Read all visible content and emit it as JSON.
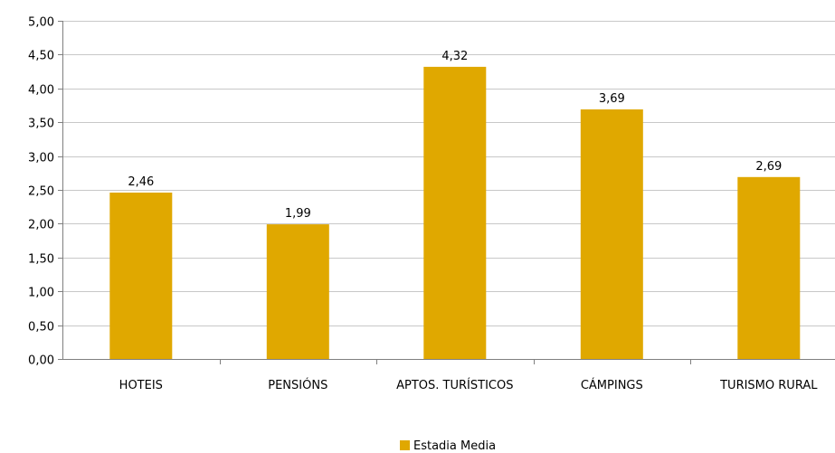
{
  "chart_data": {
    "type": "bar",
    "categories": [
      "HOTEIS",
      "PENSIÓNS",
      "APTOS. TURÍSTICOS",
      "CÁMPINGS",
      "TURISMO RURAL"
    ],
    "series": [
      {
        "name": "Estadia Media",
        "values": [
          2.46,
          1.99,
          4.32,
          3.69,
          2.69
        ],
        "value_labels": [
          "2,46",
          "1,99",
          "4,32",
          "3,69",
          "2,69"
        ],
        "color": "#E0A800"
      }
    ],
    "ylim": [
      0,
      5
    ],
    "y_ticks": [
      {
        "value": 0,
        "label": "0,00"
      },
      {
        "value": 0.5,
        "label": "0,50"
      },
      {
        "value": 1,
        "label": "1,00"
      },
      {
        "value": 1.5,
        "label": "1,50"
      },
      {
        "value": 2,
        "label": "2,00"
      },
      {
        "value": 2.5,
        "label": "2,50"
      },
      {
        "value": 3,
        "label": "3,00"
      },
      {
        "value": 3.5,
        "label": "3,50"
      },
      {
        "value": 4,
        "label": "4,00"
      },
      {
        "value": 4.5,
        "label": "4,50"
      },
      {
        "value": 5,
        "label": "5,00"
      }
    ],
    "grid": true,
    "gridline_color": "#C8C8C8",
    "axis_color": "#7F7F7F",
    "legend_position": "bottom-center",
    "legend": {
      "label": "Estadia Media"
    }
  }
}
